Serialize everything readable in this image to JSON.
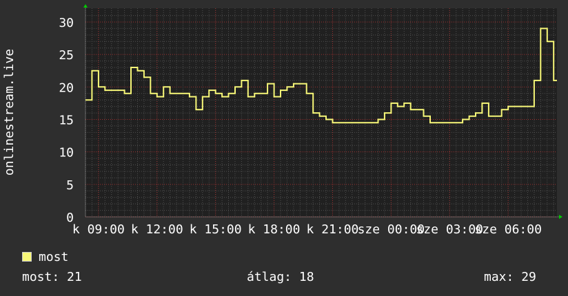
{
  "chart_data": {
    "type": "line",
    "title": "",
    "ylabel": "onlinestream.live",
    "xlabel": "",
    "ylim": [
      0,
      31
    ],
    "yticks": [
      0,
      5,
      10,
      15,
      20,
      25,
      30
    ],
    "grid": true,
    "start_time": "08:20",
    "step_minutes": 20,
    "xticks": [
      {
        "time": "09:00",
        "label": "k 09:00"
      },
      {
        "time": "12:00",
        "label": "k 12:00"
      },
      {
        "time": "15:00",
        "label": "k 15:00"
      },
      {
        "time": "18:00",
        "label": "k 18:00"
      },
      {
        "time": "21:00",
        "label": "k 21:00"
      },
      {
        "time": "00:00",
        "label": "sze 00:00"
      },
      {
        "time": "03:00",
        "label": "sze 03:00"
      },
      {
        "time": "06:00",
        "label": "sze 06:00"
      }
    ],
    "series": [
      {
        "name": "most",
        "color": "#f8f878",
        "values": [
          18,
          22.5,
          20,
          19.5,
          19.5,
          19.5,
          19,
          23,
          22.5,
          21.5,
          19,
          18.5,
          20,
          19,
          19,
          19,
          18.5,
          16.5,
          18.5,
          19.5,
          19,
          18.5,
          19,
          20,
          21,
          18.5,
          19,
          19,
          20.5,
          18.5,
          19.5,
          20,
          20.5,
          20.5,
          19,
          16,
          15.5,
          15,
          14.5,
          14.5,
          14.5,
          14.5,
          14.5,
          14.5,
          14.5,
          15,
          16,
          17.5,
          17,
          17.5,
          16.5,
          16.5,
          15.5,
          14.5,
          14.5,
          14.5,
          14.5,
          14.5,
          15,
          15.5,
          16,
          17.5,
          15.5,
          15.5,
          16.5,
          17,
          17,
          17,
          17,
          21,
          29,
          27,
          21
        ]
      }
    ],
    "legend": "bottom-left"
  },
  "colors": {
    "background": "#2e2e2e",
    "plot": "#202020",
    "line": "#f8f878",
    "major_grid": "#a03030",
    "minor_grid": "#505050",
    "arrow": "#00cc00"
  },
  "stats": {
    "current_label": "most:",
    "current_value": "21",
    "avg_label": "átlag:",
    "avg_value": "18",
    "max_label": "max:",
    "max_value": "29"
  }
}
